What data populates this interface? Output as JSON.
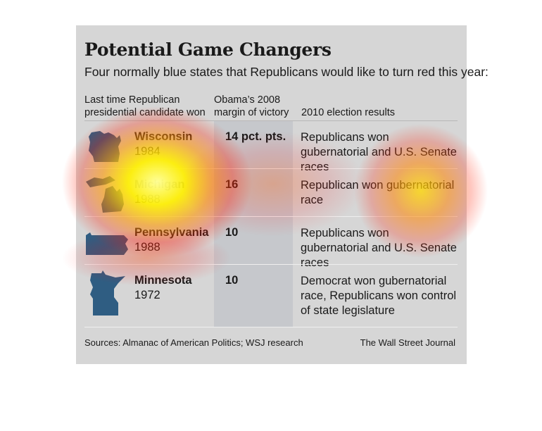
{
  "title": "Potential Game Changers",
  "subtitle": "Four normally blue states that Republicans would like to turn red this year:",
  "headers": {
    "col1": "Last time Republican presidential candidate won",
    "col2": "Obama’s 2008 margin of victory",
    "col3": "2010 election results"
  },
  "rows": [
    {
      "state": "Wisconsin",
      "year": "1984",
      "margin": "14 pct. pts.",
      "result": "Republicans won gubernatorial and U.S. Senate races",
      "icon": "wisconsin-map-icon"
    },
    {
      "state": "Michigan",
      "year": "1988",
      "margin": "16",
      "result": "Republican won gubernatorial race",
      "icon": "michigan-map-icon"
    },
    {
      "state": "Pennsylvania",
      "year": "1988",
      "margin": "10",
      "result": "Republicans won gubernatorial and U.S. Senate races",
      "icon": "pennsylvania-map-icon"
    },
    {
      "state": "Minnesota",
      "year": "1972",
      "margin": "10",
      "result": "Democrat won gubernatorial race, Republicans won control of state legislature",
      "icon": "minnesota-map-icon"
    }
  ],
  "footer": {
    "sources": "Sources: Almanac of American Politics; WSJ research",
    "credit": "The Wall Street Journal"
  },
  "colors": {
    "state_fill": "#2f5d82",
    "card_bg": "#d6d6d6",
    "heat_core": "#fff200",
    "heat_edge": "#ff2a00"
  }
}
